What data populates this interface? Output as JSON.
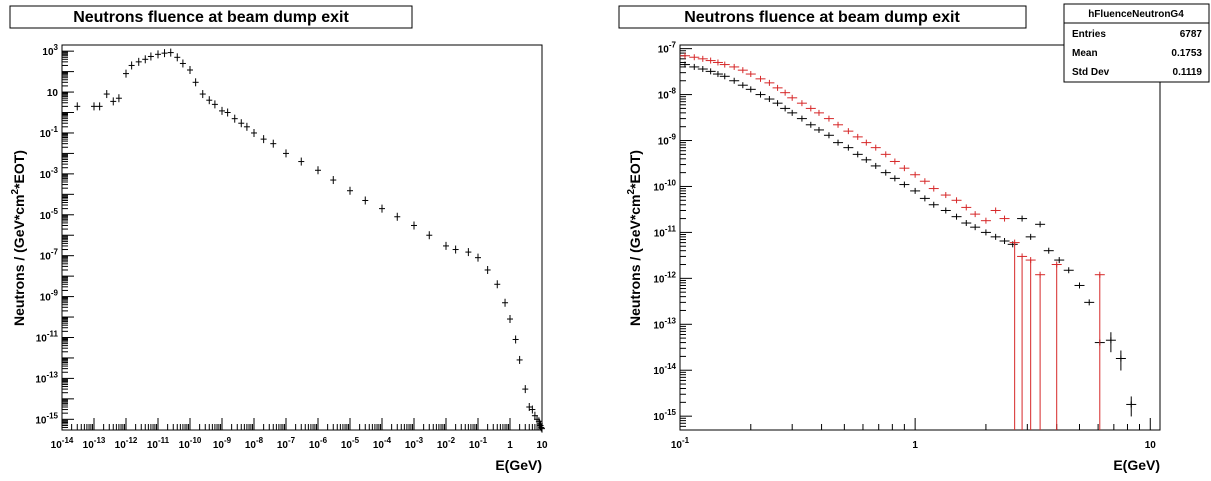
{
  "chart_data": [
    {
      "type": "scatter",
      "title": "Neutrons fluence at beam dump exit",
      "xlabel": "E(GeV)",
      "ylabel": "Neutrons / (GeV*cm^2*EOT)",
      "xscale": "log",
      "yscale": "log",
      "xlim": [
        1e-14,
        10
      ],
      "ylim": [
        3e-16,
        2000.0
      ],
      "x_ticks": [
        "10^-14",
        "10^-13",
        "10^-12",
        "10^-11",
        "10^-10",
        "10^-9",
        "10^-8",
        "10^-7",
        "10^-6",
        "10^-5",
        "10^-4",
        "10^-3",
        "10^-2",
        "10^-1",
        "1",
        "10"
      ],
      "y_ticks": [
        "10^3",
        "10",
        "10^-1",
        "10^-3",
        "10^-5",
        "10^-7",
        "10^-9",
        "10^-11",
        "10^-13",
        "10^-15"
      ],
      "series": [
        {
          "color": "#000000",
          "x": [
            3e-14,
            1e-13,
            1.5e-13,
            2.5e-13,
            4e-13,
            6e-13,
            1e-12,
            1.5e-12,
            2.5e-12,
            4e-12,
            6e-12,
            1e-11,
            1.6e-11,
            2.5e-11,
            4e-11,
            6e-11,
            1e-10,
            1.5e-10,
            2.5e-10,
            4e-10,
            6e-10,
            1e-09,
            1.5e-09,
            2.5e-09,
            4e-09,
            6e-09,
            1e-08,
            2e-08,
            4e-08,
            1e-07,
            3e-07,
            1e-06,
            3e-06,
            1e-05,
            3e-05,
            0.0001,
            0.0003,
            0.001,
            0.003,
            0.01,
            0.02,
            0.05,
            0.1,
            0.2,
            0.4,
            0.7,
            1,
            1.5,
            2,
            3,
            4,
            5,
            6,
            7,
            8,
            8.5,
            9,
            9.5,
            10
          ],
          "y": [
            2.0,
            2.0,
            2.0,
            8,
            3.5,
            5,
            80,
            200,
            300,
            400,
            550,
            700,
            800,
            850,
            500,
            250,
            120,
            30,
            8,
            4,
            2.5,
            1.2,
            1,
            0.5,
            0.3,
            0.2,
            0.1,
            0.05,
            0.03,
            0.01,
            0.004,
            0.0015,
            0.0005,
            0.00015,
            5e-05,
            2e-05,
            8e-06,
            3e-06,
            1e-06,
            3e-07,
            2e-07,
            1.5e-07,
            8e-08,
            2e-08,
            4e-09,
            5e-10,
            8e-11,
            8e-12,
            8e-13,
            3e-14,
            4e-15,
            3e-15,
            1.5e-15,
            1e-15,
            8e-16,
            6e-16,
            5e-16,
            4e-16,
            3.5e-16
          ]
        }
      ]
    },
    {
      "type": "scatter",
      "title": "Neutrons fluence at beam dump exit",
      "xlabel": "E(GeV)",
      "ylabel": "Neutrons / (GeV*cm^2*EOT)",
      "xscale": "log",
      "yscale": "log",
      "xlim": [
        0.1,
        11
      ],
      "ylim": [
        5e-16,
        1.2e-07
      ],
      "x_ticks": [
        "10^-1",
        "1",
        "10"
      ],
      "y_ticks": [
        "10^-7",
        "10^-8",
        "10^-9",
        "10^-10",
        "10^-11",
        "10^-12",
        "10^-13",
        "10^-14",
        "10^-15"
      ],
      "stats_box": {
        "name": "hFluenceNeutronG4",
        "rows": [
          {
            "label": "Entries",
            "value": "6787"
          },
          {
            "label": "Mean",
            "value": "0.1753"
          },
          {
            "label": "Std Dev",
            "value": "0.1119"
          }
        ]
      },
      "series": [
        {
          "color": "#000000",
          "x": [
            0.105,
            0.115,
            0.125,
            0.135,
            0.145,
            0.155,
            0.17,
            0.185,
            0.2,
            0.22,
            0.24,
            0.26,
            0.28,
            0.3,
            0.33,
            0.36,
            0.39,
            0.43,
            0.47,
            0.52,
            0.57,
            0.62,
            0.68,
            0.75,
            0.82,
            0.9,
            1.0,
            1.1,
            1.2,
            1.35,
            1.5,
            1.65,
            1.8,
            2.0,
            2.2,
            2.4,
            2.6,
            2.85,
            3.1,
            3.4,
            3.7,
            4.1,
            4.5,
            5.0,
            5.5,
            6.1,
            6.8,
            7.5,
            8.3
          ],
          "y": [
            4.5e-08,
            4e-08,
            3.6e-08,
            3.2e-08,
            2.8e-08,
            2.5e-08,
            2e-08,
            1.6e-08,
            1.3e-08,
            1e-08,
            8e-09,
            6.5e-09,
            5e-09,
            4e-09,
            3e-09,
            2.2e-09,
            1.7e-09,
            1.3e-09,
            9e-10,
            7e-10,
            5e-10,
            3.8e-10,
            2.8e-10,
            2e-10,
            1.5e-10,
            1.1e-10,
            8e-11,
            5.5e-11,
            4e-11,
            3e-11,
            2.2e-11,
            1.6e-11,
            1.3e-11,
            1e-11,
            8e-12,
            6.5e-12,
            5.5e-12,
            2e-11,
            8e-12,
            1.5e-11,
            4e-12,
            2.5e-12,
            1.5e-12,
            7e-13,
            3e-13,
            4e-14,
            4.5e-14,
            1.8e-14,
            1.8e-15
          ]
        },
        {
          "color": "#d62728",
          "x": [
            0.105,
            0.115,
            0.125,
            0.135,
            0.145,
            0.155,
            0.17,
            0.185,
            0.2,
            0.22,
            0.24,
            0.26,
            0.28,
            0.3,
            0.33,
            0.36,
            0.39,
            0.43,
            0.47,
            0.52,
            0.57,
            0.62,
            0.68,
            0.75,
            0.82,
            0.9,
            1.0,
            1.1,
            1.2,
            1.35,
            1.5,
            1.65,
            1.8,
            2.0,
            2.2,
            2.4,
            2.65,
            2.85,
            3.1,
            3.4,
            4.0,
            6.1
          ],
          "y": [
            7e-08,
            6.5e-08,
            6e-08,
            5.5e-08,
            5e-08,
            4.5e-08,
            4e-08,
            3.4e-08,
            2.8e-08,
            2.2e-08,
            1.8e-08,
            1.4e-08,
            1.1e-08,
            8.5e-09,
            6.5e-09,
            5e-09,
            4e-09,
            3e-09,
            2.2e-09,
            1.6e-09,
            1.2e-09,
            9e-10,
            7e-10,
            5e-10,
            3.5e-10,
            2.5e-10,
            1.8e-10,
            1.3e-10,
            9e-11,
            6.5e-11,
            5e-11,
            3.5e-11,
            2.5e-11,
            1.8e-11,
            3e-11,
            2e-11,
            6e-12,
            3e-12,
            2.5e-12,
            1.2e-12,
            2e-12,
            1.2e-12
          ]
        }
      ]
    }
  ]
}
